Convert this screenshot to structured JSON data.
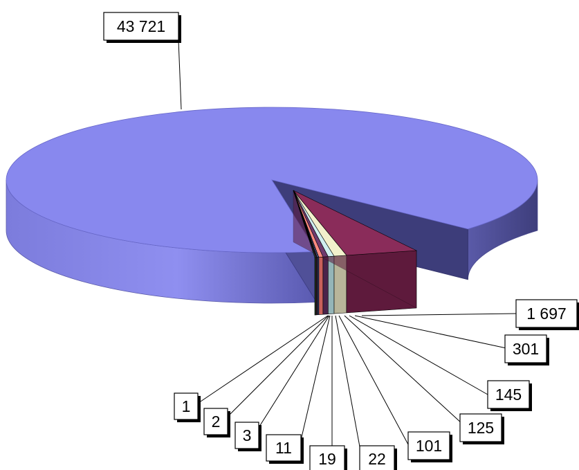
{
  "chart_data": {
    "type": "pie",
    "title": "",
    "style": "3d-exploded",
    "slices": [
      {
        "label": "43 721",
        "value": 43721,
        "color": "#8888ee",
        "side_color": "#6e6ecf"
      },
      {
        "label": "1 697",
        "value": 1697,
        "color": "#8a2c5a",
        "side_color": "#5e1a3c"
      },
      {
        "label": "301",
        "value": 301,
        "color": "#f2f0cc",
        "side_color": "#b8b59a"
      },
      {
        "label": "145",
        "value": 145,
        "color": "#cfeef0",
        "side_color": "#94b5b8"
      },
      {
        "label": "125",
        "value": 125,
        "color": "#6e3a6e",
        "side_color": "#4a234a"
      },
      {
        "label": "101",
        "value": 101,
        "color": "#ff8a80",
        "side_color": "#c8605a"
      },
      {
        "label": "22",
        "value": 22,
        "color": "#3b6fc4",
        "side_color": "#27498a"
      },
      {
        "label": "19",
        "value": 19,
        "color": "#d0ccf5",
        "side_color": "#9a96c0"
      },
      {
        "label": "11",
        "value": 11,
        "color": "#1a1a7a",
        "side_color": "#10104e"
      },
      {
        "label": "3",
        "value": 3,
        "color": "#d642d6",
        "side_color": "#9a2c9a"
      },
      {
        "label": "2",
        "value": 2,
        "color": "#e8e84a",
        "side_color": "#a8a830"
      },
      {
        "label": "1",
        "value": 1,
        "color": "#33c9c9",
        "side_color": "#238f8f"
      }
    ]
  }
}
